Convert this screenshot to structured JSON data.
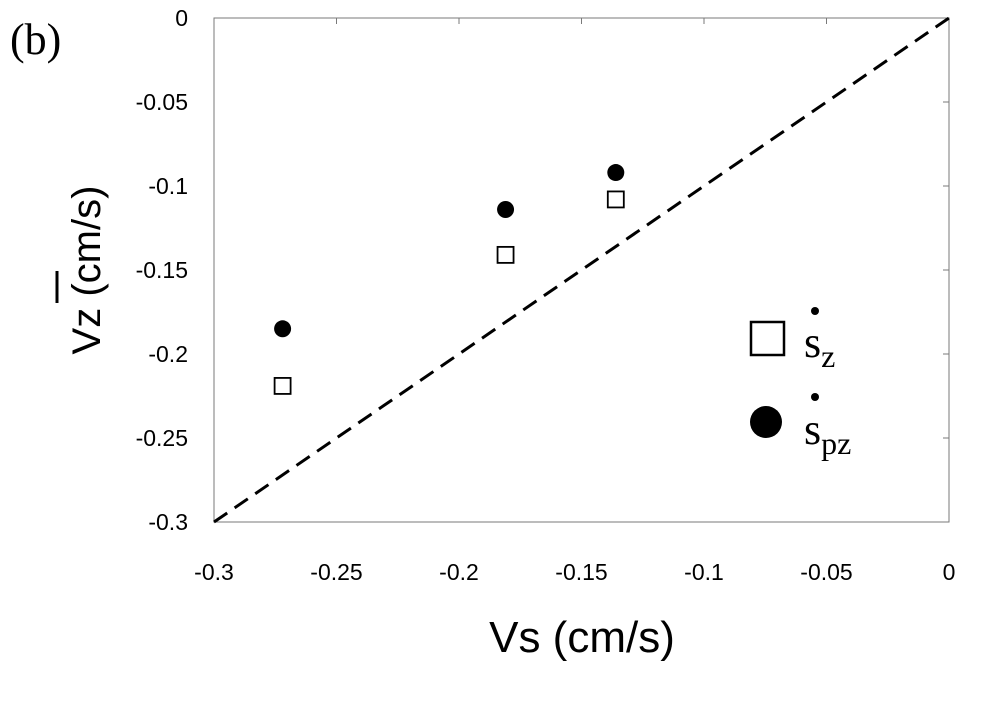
{
  "panel_label": "(b)",
  "chart_data": {
    "type": "scatter",
    "xlabel": "Vs (cm/s)",
    "ylabel": "Vz (cm/s)",
    "ylabel_overbar_on": "V",
    "xlim": [
      -0.3,
      0
    ],
    "ylim": [
      -0.3,
      0
    ],
    "x_ticks": [
      -0.3,
      -0.25,
      -0.2,
      -0.15,
      -0.1,
      -0.05,
      0
    ],
    "x_tick_labels": [
      "-0.3",
      "-0.25",
      "-0.2",
      "-0.15",
      "-0.1",
      "-0.05",
      "0"
    ],
    "y_ticks": [
      0,
      -0.05,
      -0.1,
      -0.15,
      -0.2,
      -0.25,
      -0.3
    ],
    "y_tick_labels": [
      "0",
      "-0.05",
      "-0.1",
      "-0.15",
      "-0.2",
      "-0.25",
      "-0.3"
    ],
    "grid": false,
    "reference_line": {
      "style": "dashed",
      "x": [
        -0.3,
        0
      ],
      "y": [
        -0.3,
        0
      ]
    },
    "series": [
      {
        "name": "s_z",
        "legend_base": "s",
        "legend_sub": "z",
        "marker": "open-square",
        "x": [
          -0.272,
          -0.181,
          -0.136
        ],
        "y": [
          -0.219,
          -0.141,
          -0.108
        ]
      },
      {
        "name": "s_pz",
        "legend_base": "s",
        "legend_sub": "pz",
        "marker": "filled-circle",
        "x": [
          -0.272,
          -0.181,
          -0.136
        ],
        "y": [
          -0.185,
          -0.114,
          -0.092
        ]
      }
    ],
    "legend_position": "right-middle"
  }
}
